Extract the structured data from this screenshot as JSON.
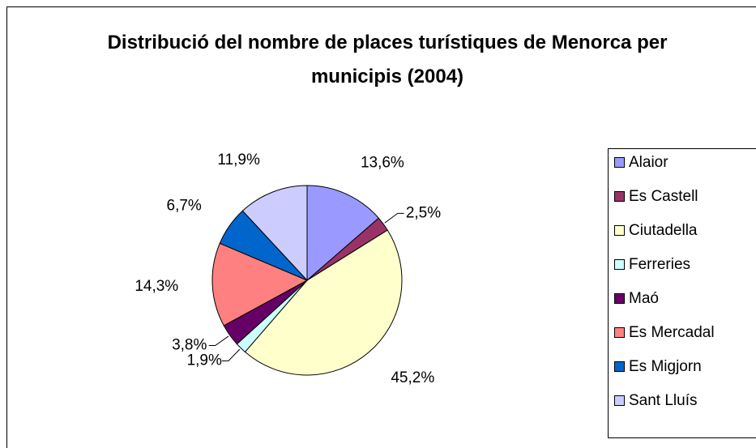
{
  "chart_data": {
    "type": "pie",
    "title": "Distribució del nombre de places turístiques de Menorca per municipis (2004)",
    "categories": [
      "Alaior",
      "Es Castell",
      "Ciutadella",
      "Ferreries",
      "Maó",
      "Es Mercadal",
      "Es Migjorn",
      "Sant Lluís"
    ],
    "values": [
      13.6,
      2.5,
      45.2,
      1.9,
      3.8,
      14.3,
      6.7,
      11.9
    ],
    "value_labels": [
      "13,6%",
      "2,5%",
      "45,2%",
      "1,9%",
      "3,8%",
      "14,3%",
      "6,7%",
      "11,9%"
    ],
    "colors": [
      "#9999ff",
      "#993366",
      "#ffffcc",
      "#ccffff",
      "#660066",
      "#ff8080",
      "#0066cc",
      "#ccccff"
    ],
    "legend": "right"
  }
}
